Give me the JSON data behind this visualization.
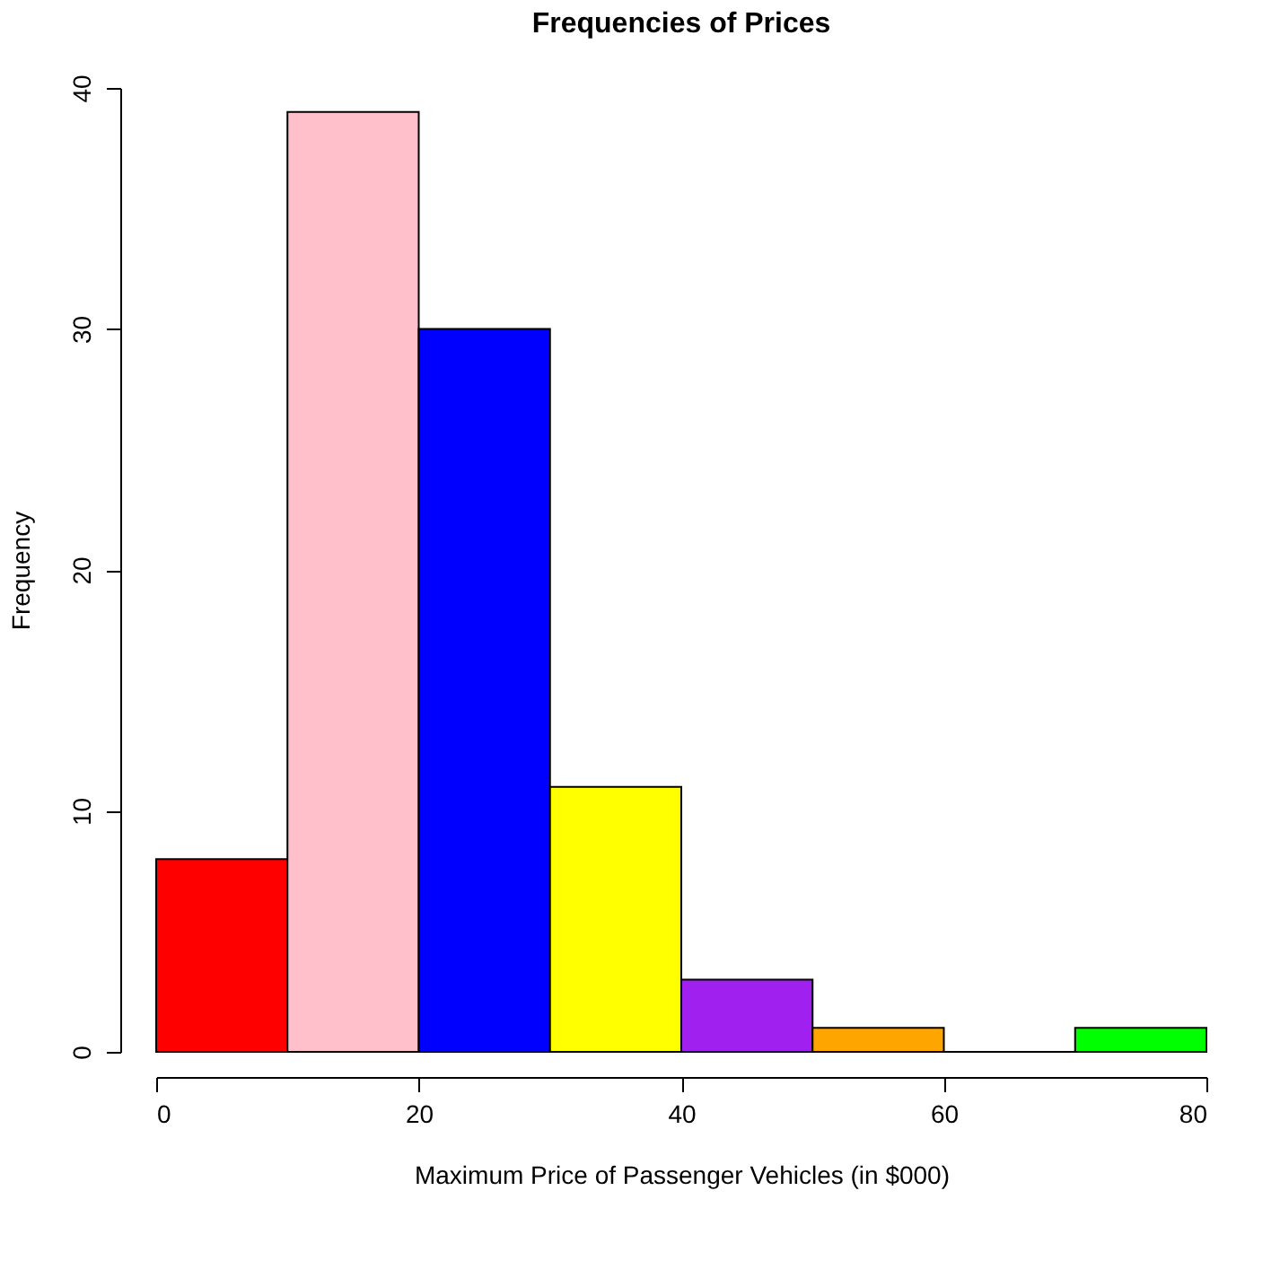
{
  "chart_data": {
    "type": "histogram",
    "title": "Frequencies of Prices",
    "xlabel": "Maximum Price of Passenger Vehicles (in $000)",
    "ylabel": "Frequency",
    "bins": [
      0,
      10,
      20,
      30,
      40,
      50,
      60,
      70,
      80
    ],
    "values": [
      8,
      39,
      30,
      11,
      3,
      1,
      0,
      1
    ],
    "colors": [
      "#ff0000",
      "#ffc0cb",
      "#0000ff",
      "#ffff00",
      "#a020f0",
      "#ffa500",
      "#000000",
      "#00ff00"
    ],
    "xlim": [
      0,
      80
    ],
    "ylim": [
      0,
      40
    ],
    "xticks": [
      0,
      20,
      40,
      60,
      80
    ],
    "yticks": [
      0,
      10,
      20,
      30,
      40
    ],
    "grid": false,
    "legend": false
  }
}
